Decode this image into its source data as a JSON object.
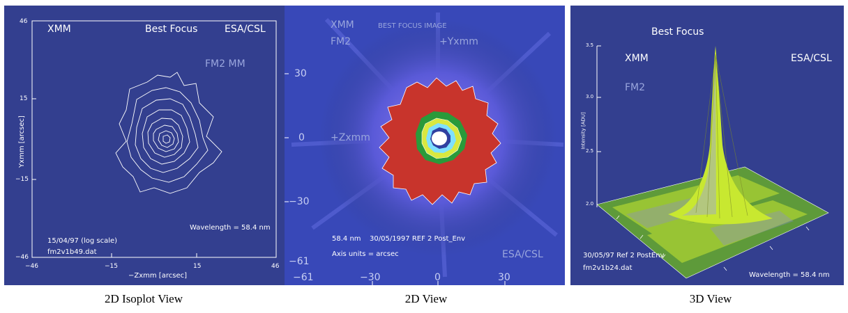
{
  "panels": {
    "isoplot": {
      "title_left": "XMM",
      "title_center": "Best Focus",
      "title_right": "ESA/CSL",
      "model": "FM2 MM",
      "y_axis_label": "Yxmm [arcsec]",
      "x_axis_label": "−Zxmm [arcsec]",
      "y_ticks": [
        "46",
        "15",
        "−15",
        "−46"
      ],
      "x_ticks": [
        "−46",
        "−15",
        "15",
        "46"
      ],
      "wavelength": "Wavelength = 58.4 nm",
      "date_note": "15/04/97 (log scale)",
      "file": "fm2v1b49.dat"
    },
    "view2d": {
      "title_left": "XMM",
      "title_center": "BEST FOCUS IMAGE",
      "model": "FM2",
      "y_label": "+Yxmm",
      "z_label": "+Zxmm",
      "y_ticks": [
        "30",
        "0",
        "−30",
        "−61"
      ],
      "x_ticks": [
        "−61",
        "−30",
        "0",
        "30"
      ],
      "wavelength_short": "58.4 nm",
      "date_note": "30/05/1997 REF 2 Post_Env",
      "axis_units": "Axis units = arcsec",
      "credit": "ESA/CSL"
    },
    "view3d": {
      "title": "Best Focus",
      "title_left": "XMM",
      "title_right": "ESA/CSL",
      "model": "FM2",
      "z_axis_label": "Intensity [ADU]",
      "z_ticks": [
        "3.5",
        "3.0",
        "2.5",
        "2.0"
      ],
      "date_note": "30/05/97 Ref 2 PostEnv",
      "file": "fm2v1b24.dat",
      "wavelength": "Wavelength = 58.4 nm"
    }
  },
  "captions": {
    "isoplot": "2D Isoplot View",
    "view2d": "2D View",
    "view3d": "3D View"
  },
  "colors": {
    "panel_bg": "#333f8f",
    "contour": "#ffffff",
    "psf_red": "#c8342c",
    "psf_green": "#2a9a3a",
    "psf_cyan": "#7fe0ff",
    "surface": "#c8e830",
    "ground": "#6aa83a"
  }
}
